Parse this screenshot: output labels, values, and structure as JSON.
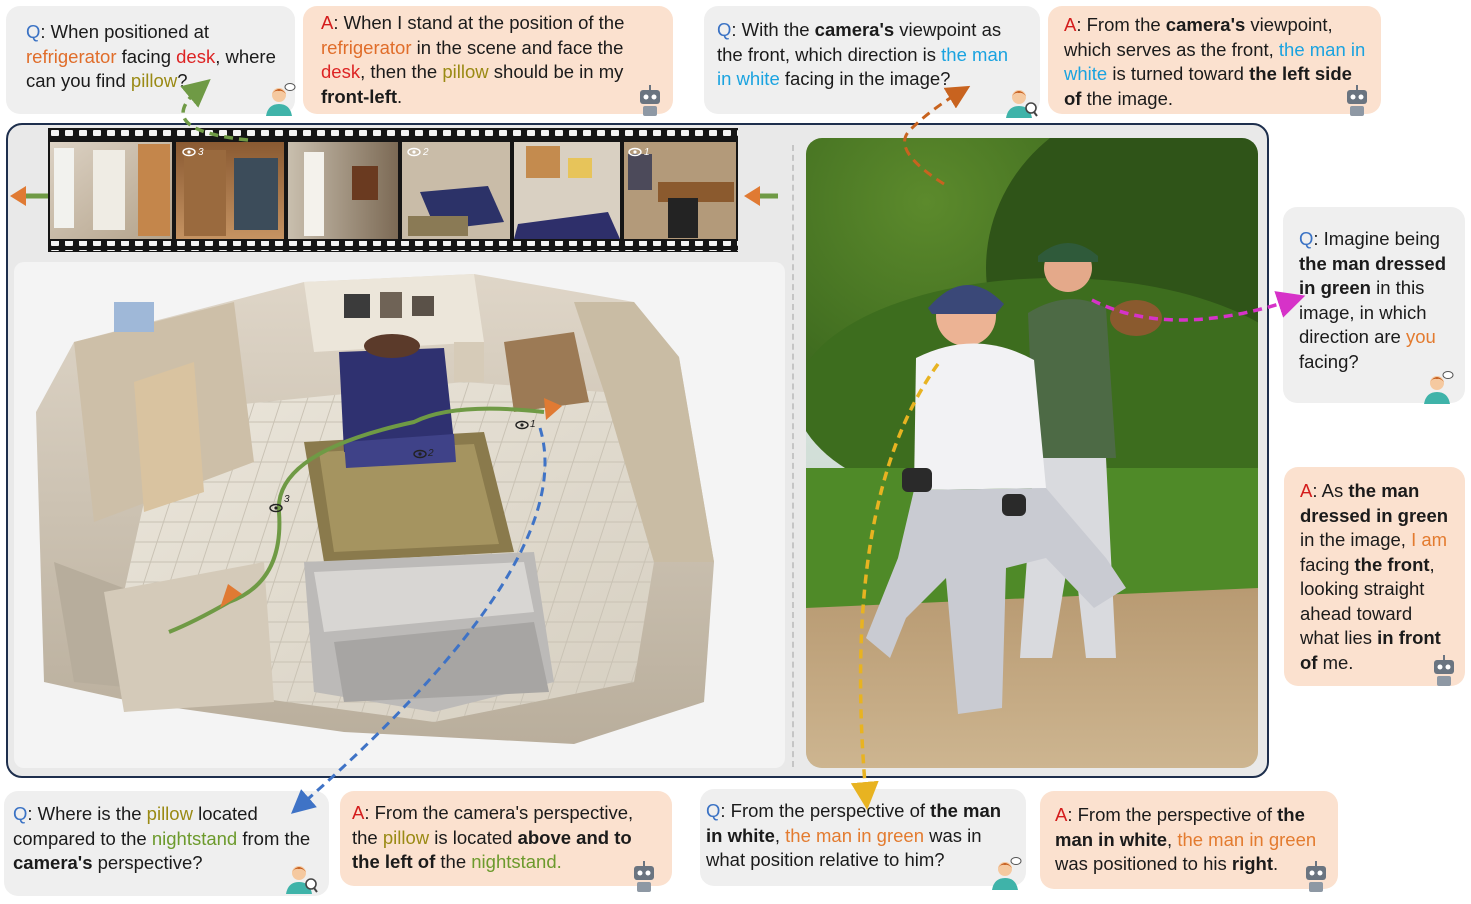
{
  "labels": {
    "q": "Q",
    "a": "A"
  },
  "q1": {
    "p1": "When positioned at ",
    "refrigerator": "refrigerator",
    "p2": " facing ",
    "desk": "desk",
    "p3": ", where can you find ",
    "pillow": "pillow",
    "p4": "?"
  },
  "a1": {
    "p1": "When I stand at the position of the ",
    "refrigerator": "refrigerator",
    "p2": " in the scene and face the ",
    "desk": "desk",
    "p3": ", then the ",
    "pillow": "pillow",
    "p4": " should be in my ",
    "answer": "front-left",
    "p5": "."
  },
  "q2": {
    "p1": "With the ",
    "camera": "camera's",
    "p2": " viewpoint as the front, which direction is ",
    "man_white": "the man in white",
    "p3": " facing in the image?"
  },
  "a2": {
    "p1": "From the ",
    "camera": "camera's",
    "p2": " viewpoint, which serves as the front, ",
    "man_white": "the man in white",
    "p3": " is turned toward ",
    "answer": "the left side of",
    "p4": " the image."
  },
  "q3": {
    "p1": "Imagine being ",
    "man_green": "the man dressed in green",
    "p2": " in this image, in which direction are ",
    "you": "you",
    "p3": " facing?"
  },
  "a3": {
    "p1": "As ",
    "man_green": "the man dressed in green",
    "p2": " in the image, ",
    "i_am": "I am",
    "p3": " facing ",
    "front": "the front",
    "p4": ", looking straight ahead toward what lies ",
    "in_front": "in front of",
    "p5": " me."
  },
  "q4": {
    "p1": "Where is the ",
    "pillow": "pillow",
    "p2": " located compared to the ",
    "nightstand": "nightstand",
    "p3": " from the ",
    "camera": "camera's",
    "p4": " perspective?"
  },
  "a4": {
    "p1": "From the camera's perspective, the ",
    "pillow": "pillow",
    "p2": " is located ",
    "answer": "above and to the left of",
    "p3": " the ",
    "nightstand": "nightstand."
  },
  "q5": {
    "p1": "From the perspective of ",
    "man_white": "the man in white",
    "p2": ", ",
    "man_green": "the man in green",
    "p3": " was in what position relative to him?"
  },
  "a5": {
    "p1": "From the perspective of ",
    "man_white": "the man in white",
    "p2": ", ",
    "man_green": "the man in green",
    "p3": " was positioned to his ",
    "answer": "right",
    "p4": "."
  },
  "film_frames": [
    {
      "view_mark": "3"
    },
    {
      "view_mark": "2"
    },
    {
      "view_mark": "1"
    }
  ],
  "room_view_marks": [
    "1",
    "2",
    "3"
  ],
  "colors": {
    "q_label": "#3a72c4",
    "a_label": "#d41c1c",
    "q_bubble": "#efefef",
    "a_bubble": "#fbe1cf",
    "frame_border": "#1e2f4d",
    "green_path": "#6f9a45",
    "blue_arrow": "#3f73c6",
    "orange_arrow": "#c8631f",
    "magenta_arrow": "#d632c8",
    "yellow_arrow": "#e8b321"
  }
}
